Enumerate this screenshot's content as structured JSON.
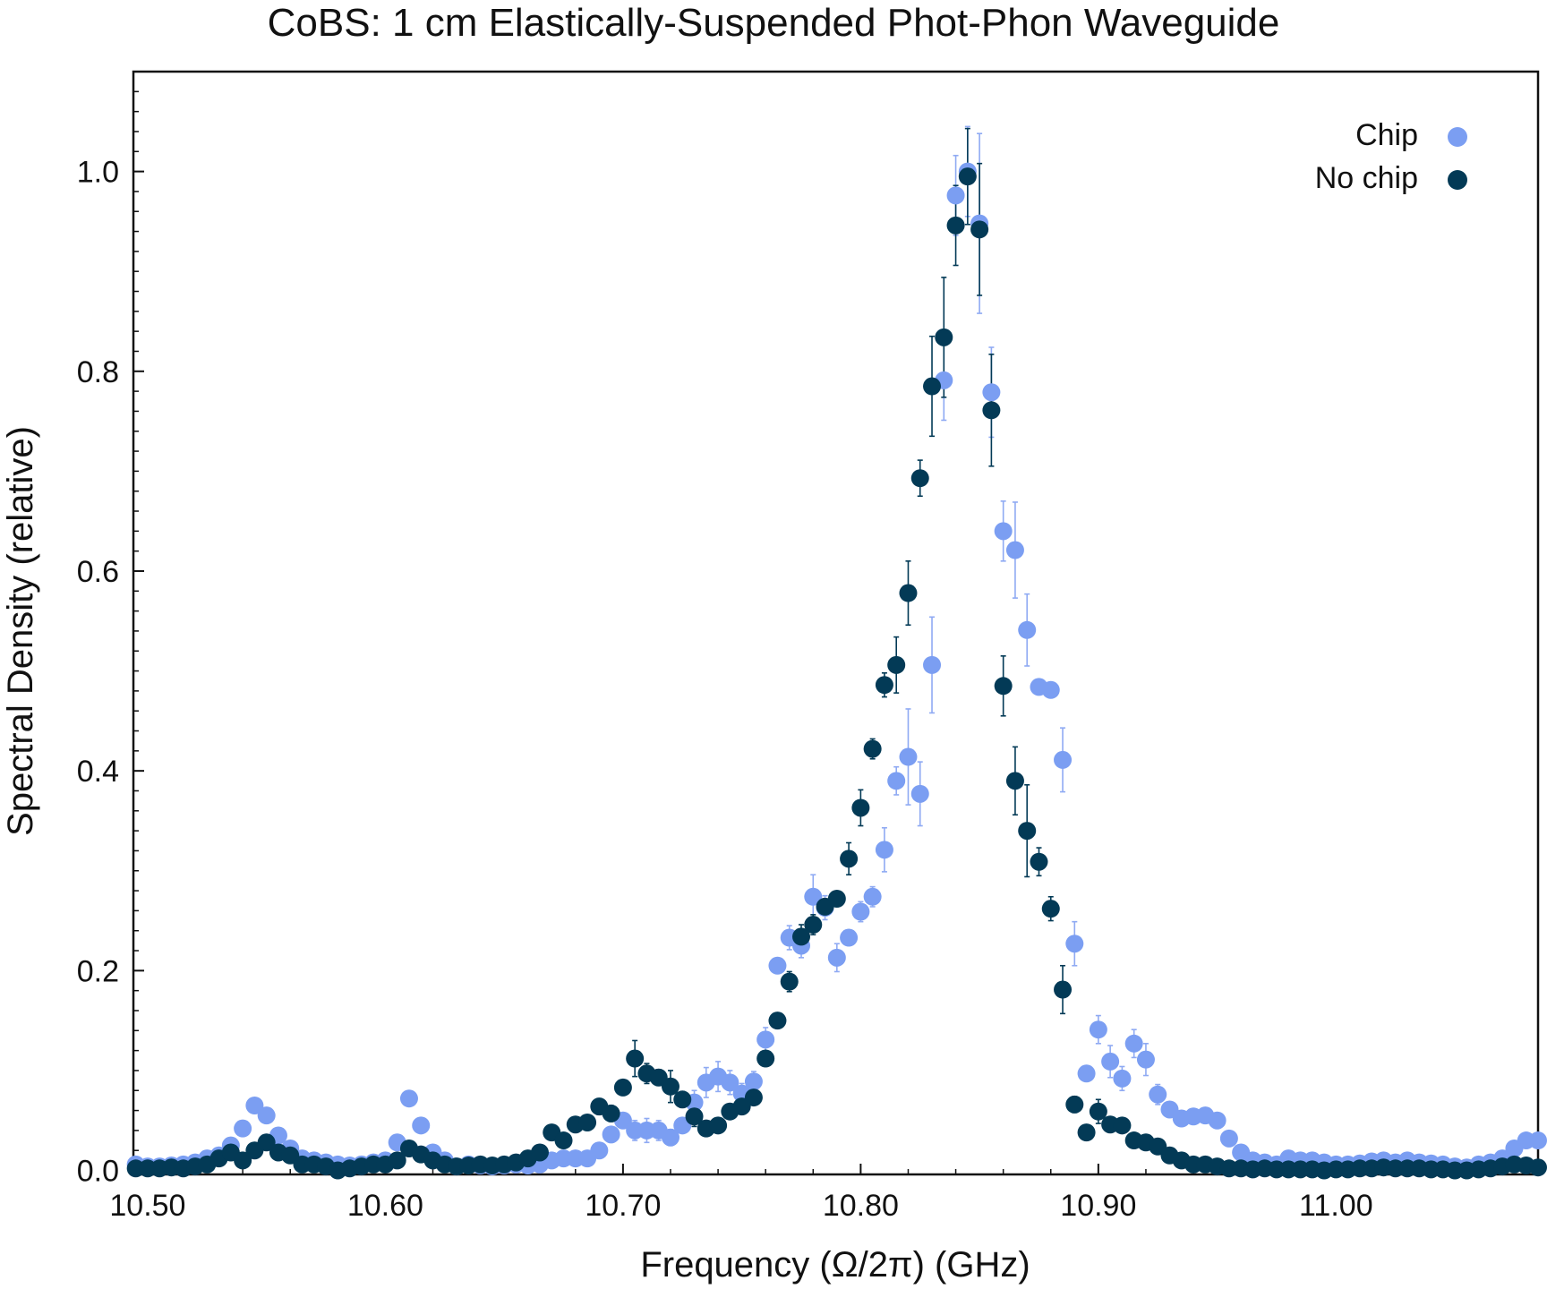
{
  "chart_data": {
    "type": "scatter",
    "title": "CoBS: 1 cm Elastically-Suspended Phot-Phon Waveguide",
    "xlabel": "Frequency (Ω/2π) (GHz)",
    "ylabel": "Spectral Density (relative)",
    "xlim": [
      10.494,
      11.085
    ],
    "ylim": [
      -0.004,
      1.1
    ],
    "xticks": [
      10.5,
      10.6,
      10.7,
      10.8,
      10.9,
      11.0
    ],
    "xtick_labels": [
      "10.50",
      "10.60",
      "10.70",
      "10.80",
      "10.90",
      "11.00"
    ],
    "yticks": [
      0.0,
      0.2,
      0.4,
      0.6,
      0.8,
      1.0
    ],
    "ytick_labels": [
      "0.0",
      "0.2",
      "0.4",
      "0.6",
      "0.8",
      "1.0"
    ],
    "grid": false,
    "legend_position": "top-right",
    "series": [
      {
        "name": "Chip",
        "color": "#7b9ef2",
        "points": [
          [
            10.495,
            0.006,
            0
          ],
          [
            10.5,
            0.004,
            0
          ],
          [
            10.505,
            0.004,
            0
          ],
          [
            10.51,
            0.005,
            0
          ],
          [
            10.515,
            0.006,
            0
          ],
          [
            10.52,
            0.008,
            0
          ],
          [
            10.525,
            0.012,
            0
          ],
          [
            10.53,
            0.015,
            0
          ],
          [
            10.535,
            0.025,
            0
          ],
          [
            10.54,
            0.042,
            0
          ],
          [
            10.545,
            0.065,
            0
          ],
          [
            10.55,
            0.055,
            0
          ],
          [
            10.555,
            0.035,
            0
          ],
          [
            10.56,
            0.022,
            0
          ],
          [
            10.565,
            0.012,
            0
          ],
          [
            10.57,
            0.01,
            0
          ],
          [
            10.575,
            0.008,
            0
          ],
          [
            10.58,
            0.006,
            0
          ],
          [
            10.585,
            0.005,
            0
          ],
          [
            10.59,
            0.006,
            0
          ],
          [
            10.595,
            0.008,
            0
          ],
          [
            10.6,
            0.01,
            0
          ],
          [
            10.605,
            0.028,
            0
          ],
          [
            10.61,
            0.072,
            0
          ],
          [
            10.615,
            0.045,
            0
          ],
          [
            10.62,
            0.018,
            0
          ],
          [
            10.625,
            0.01,
            0
          ],
          [
            10.63,
            0.004,
            0
          ],
          [
            10.635,
            0.006,
            0
          ],
          [
            10.64,
            0.005,
            0
          ],
          [
            10.645,
            0.004,
            0
          ],
          [
            10.65,
            0.005,
            0
          ],
          [
            10.655,
            0.006,
            0
          ],
          [
            10.66,
            0.005,
            0
          ],
          [
            10.665,
            0.006,
            0
          ],
          [
            10.67,
            0.01,
            0
          ],
          [
            10.675,
            0.012,
            0
          ],
          [
            10.68,
            0.012,
            0
          ],
          [
            10.685,
            0.012,
            0
          ],
          [
            10.69,
            0.02,
            0
          ],
          [
            10.695,
            0.036,
            0
          ],
          [
            10.7,
            0.05,
            0
          ],
          [
            10.705,
            0.04,
            0.01
          ],
          [
            10.71,
            0.04,
            0.012
          ],
          [
            10.715,
            0.04,
            0.01
          ],
          [
            10.72,
            0.033,
            0.008
          ],
          [
            10.725,
            0.045,
            0
          ],
          [
            10.73,
            0.068,
            0.012
          ],
          [
            10.735,
            0.088,
            0.015
          ],
          [
            10.74,
            0.094,
            0.015
          ],
          [
            10.745,
            0.088,
            0.012
          ],
          [
            10.75,
            0.077,
            0.01
          ],
          [
            10.755,
            0.089,
            0.01
          ],
          [
            10.76,
            0.131,
            0.012
          ],
          [
            10.765,
            0.205,
            0
          ],
          [
            10.77,
            0.233,
            0.012
          ],
          [
            10.775,
            0.225,
            0.012
          ],
          [
            10.78,
            0.274,
            0.022
          ],
          [
            10.785,
            0.263,
            0.012
          ],
          [
            10.79,
            0.213,
            0.014
          ],
          [
            10.795,
            0.233,
            0
          ],
          [
            10.8,
            0.259,
            0.01
          ],
          [
            10.805,
            0.274,
            0.01
          ],
          [
            10.81,
            0.321,
            0.022
          ],
          [
            10.815,
            0.39,
            0.014
          ],
          [
            10.82,
            0.414,
            0.048
          ],
          [
            10.825,
            0.377,
            0.032
          ],
          [
            10.83,
            0.506,
            0.048
          ],
          [
            10.835,
            0.791,
            0.04
          ],
          [
            10.84,
            0.976,
            0.04
          ],
          [
            10.845,
            1.0,
            0.045
          ],
          [
            10.85,
            0.948,
            0.09
          ],
          [
            10.855,
            0.779,
            0.045
          ],
          [
            10.86,
            0.64,
            0.03
          ],
          [
            10.865,
            0.621,
            0.048
          ],
          [
            10.87,
            0.541,
            0.036
          ],
          [
            10.875,
            0.484,
            0
          ],
          [
            10.88,
            0.481,
            0
          ],
          [
            10.885,
            0.411,
            0.032
          ],
          [
            10.89,
            0.227,
            0.022
          ],
          [
            10.895,
            0.097,
            0
          ],
          [
            10.9,
            0.141,
            0.014
          ],
          [
            10.905,
            0.109,
            0.016
          ],
          [
            10.91,
            0.092,
            0.012
          ],
          [
            10.915,
            0.127,
            0.014
          ],
          [
            10.92,
            0.111,
            0.016
          ],
          [
            10.925,
            0.076,
            0.01
          ],
          [
            10.93,
            0.061,
            0
          ],
          [
            10.935,
            0.052,
            0
          ],
          [
            10.94,
            0.054,
            0
          ],
          [
            10.945,
            0.055,
            0
          ],
          [
            10.95,
            0.05,
            0
          ],
          [
            10.955,
            0.032,
            0
          ],
          [
            10.96,
            0.018,
            0
          ],
          [
            10.965,
            0.01,
            0
          ],
          [
            10.97,
            0.008,
            0
          ],
          [
            10.975,
            0.006,
            0
          ],
          [
            10.98,
            0.012,
            0
          ],
          [
            10.985,
            0.01,
            0
          ],
          [
            10.99,
            0.01,
            0
          ],
          [
            10.995,
            0.008,
            0
          ],
          [
            11.0,
            0.006,
            0
          ],
          [
            11.005,
            0.006,
            0
          ],
          [
            11.01,
            0.007,
            0
          ],
          [
            11.015,
            0.009,
            0
          ],
          [
            11.02,
            0.01,
            0
          ],
          [
            11.025,
            0.008,
            0
          ],
          [
            11.03,
            0.01,
            0
          ],
          [
            11.035,
            0.008,
            0
          ],
          [
            11.04,
            0.007,
            0
          ],
          [
            11.045,
            0.006,
            0
          ],
          [
            11.05,
            0.004,
            0
          ],
          [
            11.055,
            0.003,
            0
          ],
          [
            11.06,
            0.006,
            0
          ],
          [
            11.065,
            0.008,
            0
          ],
          [
            11.07,
            0.012,
            0
          ],
          [
            11.075,
            0.022,
            0
          ],
          [
            11.08,
            0.03,
            0
          ],
          [
            11.085,
            0.03,
            0
          ]
        ]
      },
      {
        "name": "No chip",
        "color": "#033a56",
        "points": [
          [
            10.495,
            0.002,
            0
          ],
          [
            10.5,
            0.002,
            0
          ],
          [
            10.505,
            0.002,
            0
          ],
          [
            10.51,
            0.003,
            0
          ],
          [
            10.515,
            0.002,
            0
          ],
          [
            10.52,
            0.004,
            0
          ],
          [
            10.525,
            0.006,
            0
          ],
          [
            10.53,
            0.012,
            0
          ],
          [
            10.535,
            0.018,
            0
          ],
          [
            10.54,
            0.01,
            0
          ],
          [
            10.545,
            0.02,
            0
          ],
          [
            10.55,
            0.028,
            0
          ],
          [
            10.555,
            0.018,
            0
          ],
          [
            10.56,
            0.015,
            0
          ],
          [
            10.565,
            0.006,
            0
          ],
          [
            10.57,
            0.006,
            0
          ],
          [
            10.575,
            0.004,
            0
          ],
          [
            10.58,
            0.0,
            0
          ],
          [
            10.585,
            0.002,
            0
          ],
          [
            10.59,
            0.004,
            0
          ],
          [
            10.595,
            0.006,
            0
          ],
          [
            10.6,
            0.006,
            0
          ],
          [
            10.605,
            0.01,
            0
          ],
          [
            10.61,
            0.022,
            0
          ],
          [
            10.615,
            0.016,
            0
          ],
          [
            10.62,
            0.01,
            0
          ],
          [
            10.625,
            0.006,
            0
          ],
          [
            10.63,
            0.004,
            0
          ],
          [
            10.635,
            0.005,
            0
          ],
          [
            10.64,
            0.006,
            0
          ],
          [
            10.645,
            0.005,
            0
          ],
          [
            10.65,
            0.006,
            0
          ],
          [
            10.655,
            0.008,
            0
          ],
          [
            10.66,
            0.012,
            0
          ],
          [
            10.665,
            0.018,
            0
          ],
          [
            10.67,
            0.038,
            0
          ],
          [
            10.675,
            0.03,
            0
          ],
          [
            10.68,
            0.046,
            0
          ],
          [
            10.685,
            0.048,
            0
          ],
          [
            10.69,
            0.064,
            0.008
          ],
          [
            10.695,
            0.057,
            0.008
          ],
          [
            10.7,
            0.083,
            0
          ],
          [
            10.705,
            0.112,
            0.018
          ],
          [
            10.71,
            0.097,
            0.01
          ],
          [
            10.715,
            0.093,
            0.008
          ],
          [
            10.72,
            0.084,
            0.016
          ],
          [
            10.725,
            0.071,
            0.008
          ],
          [
            10.73,
            0.054,
            0.01
          ],
          [
            10.735,
            0.042,
            0.006
          ],
          [
            10.74,
            0.045,
            0
          ],
          [
            10.745,
            0.059,
            0
          ],
          [
            10.75,
            0.064,
            0
          ],
          [
            10.755,
            0.073,
            0.006
          ],
          [
            10.76,
            0.112,
            0
          ],
          [
            10.765,
            0.15,
            0
          ],
          [
            10.77,
            0.189,
            0.01
          ],
          [
            10.775,
            0.234,
            0.012
          ],
          [
            10.78,
            0.246,
            0.01
          ],
          [
            10.785,
            0.264,
            0.008
          ],
          [
            10.79,
            0.272,
            0
          ],
          [
            10.795,
            0.312,
            0.016
          ],
          [
            10.8,
            0.363,
            0.018
          ],
          [
            10.805,
            0.422,
            0.01
          ],
          [
            10.81,
            0.486,
            0.012
          ],
          [
            10.815,
            0.506,
            0.028
          ],
          [
            10.82,
            0.578,
            0.032
          ],
          [
            10.825,
            0.693,
            0.018
          ],
          [
            10.83,
            0.785,
            0.05
          ],
          [
            10.835,
            0.834,
            0.06
          ],
          [
            10.84,
            0.946,
            0.04
          ],
          [
            10.845,
            0.995,
            0.048
          ],
          [
            10.85,
            0.942,
            0.066
          ],
          [
            10.855,
            0.761,
            0.056
          ],
          [
            10.86,
            0.485,
            0.03
          ],
          [
            10.865,
            0.39,
            0.034
          ],
          [
            10.87,
            0.34,
            0.046
          ],
          [
            10.875,
            0.309,
            0.014
          ],
          [
            10.88,
            0.262,
            0.012
          ],
          [
            10.885,
            0.181,
            0.024
          ],
          [
            10.89,
            0.066,
            0.008
          ],
          [
            10.895,
            0.038,
            0
          ],
          [
            10.9,
            0.059,
            0.012
          ],
          [
            10.905,
            0.046,
            0
          ],
          [
            10.91,
            0.045,
            0
          ],
          [
            10.915,
            0.03,
            0
          ],
          [
            10.92,
            0.028,
            0
          ],
          [
            10.925,
            0.024,
            0
          ],
          [
            10.93,
            0.015,
            0
          ],
          [
            10.935,
            0.01,
            0
          ],
          [
            10.94,
            0.006,
            0
          ],
          [
            10.945,
            0.006,
            0
          ],
          [
            10.95,
            0.004,
            0
          ],
          [
            10.955,
            0.002,
            0
          ],
          [
            10.96,
            0.002,
            0
          ],
          [
            10.965,
            0.001,
            0
          ],
          [
            10.97,
            0.002,
            0
          ],
          [
            10.975,
            0.001,
            0
          ],
          [
            10.98,
            0.001,
            0
          ],
          [
            10.985,
            0.001,
            0
          ],
          [
            10.99,
            0.001,
            0
          ],
          [
            10.995,
            0.0,
            0
          ],
          [
            11.0,
            0.001,
            0
          ],
          [
            11.005,
            0.001,
            0
          ],
          [
            11.01,
            0.002,
            0
          ],
          [
            11.015,
            0.002,
            0
          ],
          [
            11.02,
            0.003,
            0
          ],
          [
            11.025,
            0.002,
            0
          ],
          [
            11.03,
            0.002,
            0
          ],
          [
            11.035,
            0.002,
            0
          ],
          [
            11.04,
            0.001,
            0
          ],
          [
            11.045,
            0.001,
            0
          ],
          [
            11.05,
            0.0,
            0
          ],
          [
            11.055,
            0.0,
            0
          ],
          [
            11.06,
            0.001,
            0
          ],
          [
            11.065,
            0.002,
            0
          ],
          [
            11.07,
            0.004,
            0
          ],
          [
            11.075,
            0.006,
            0
          ],
          [
            11.08,
            0.005,
            0
          ],
          [
            11.085,
            0.003,
            0
          ]
        ]
      }
    ]
  }
}
